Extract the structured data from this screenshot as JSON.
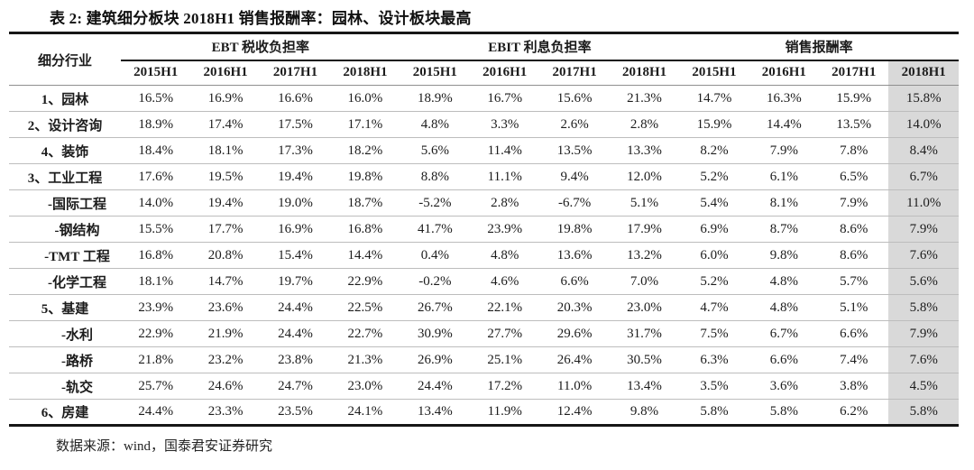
{
  "colors": {
    "highlight_bg": "#d9d9d9",
    "heavy_rule": "#161616",
    "row_divider": "#bdbdbd"
  },
  "chart_data": {
    "type": "table",
    "title": "表 2: 建筑细分板块 2018H1 销售报酬率：园林、设计板块最高",
    "row_header": "细分行业",
    "column_groups": [
      "EBT 税收负担率",
      "EBIT 利息负担率",
      "销售报酬率"
    ],
    "sub_columns": [
      "2015H1",
      "2016H1",
      "2017H1",
      "2018H1"
    ],
    "unit": "%",
    "highlighted_column": "销售报酬率 2018H1",
    "rows": [
      {
        "label": "1、园林",
        "indent": false,
        "ebt": [
          16.5,
          16.9,
          16.6,
          16.0
        ],
        "ebit": [
          18.9,
          16.7,
          15.6,
          21.3
        ],
        "sales": [
          14.7,
          16.3,
          15.9,
          15.8
        ]
      },
      {
        "label": "2、设计咨询",
        "indent": false,
        "ebt": [
          18.9,
          17.4,
          17.5,
          17.1
        ],
        "ebit": [
          4.8,
          3.3,
          2.6,
          2.8
        ],
        "sales": [
          15.9,
          14.4,
          13.5,
          14.0
        ]
      },
      {
        "label": "4、装饰",
        "indent": false,
        "ebt": [
          18.4,
          18.1,
          17.3,
          18.2
        ],
        "ebit": [
          5.6,
          11.4,
          13.5,
          13.3
        ],
        "sales": [
          8.2,
          7.9,
          7.8,
          8.4
        ]
      },
      {
        "label": "3、工业工程",
        "indent": false,
        "ebt": [
          17.6,
          19.5,
          19.4,
          19.8
        ],
        "ebit": [
          8.8,
          11.1,
          9.4,
          12.0
        ],
        "sales": [
          5.2,
          6.1,
          6.5,
          6.7
        ]
      },
      {
        "label": "-国际工程",
        "indent": true,
        "ebt": [
          14.0,
          19.4,
          19.0,
          18.7
        ],
        "ebit": [
          -5.2,
          2.8,
          -6.7,
          5.1
        ],
        "sales": [
          5.4,
          8.1,
          7.9,
          11.0
        ]
      },
      {
        "label": "-钢结构",
        "indent": true,
        "ebt": [
          15.5,
          17.7,
          16.9,
          16.8
        ],
        "ebit": [
          41.7,
          23.9,
          19.8,
          17.9
        ],
        "sales": [
          6.9,
          8.7,
          8.6,
          7.9
        ]
      },
      {
        "label": "-TMT 工程",
        "indent": true,
        "ebt": [
          16.8,
          20.8,
          15.4,
          14.4
        ],
        "ebit": [
          0.4,
          4.8,
          13.6,
          13.2
        ],
        "sales": [
          6.0,
          9.8,
          8.6,
          7.6
        ]
      },
      {
        "label": "-化学工程",
        "indent": true,
        "ebt": [
          18.1,
          14.7,
          19.7,
          22.9
        ],
        "ebit": [
          -0.2,
          4.6,
          6.6,
          7.0
        ],
        "sales": [
          5.2,
          4.8,
          5.7,
          5.6
        ]
      },
      {
        "label": "5、基建",
        "indent": false,
        "ebt": [
          23.9,
          23.6,
          24.4,
          22.5
        ],
        "ebit": [
          26.7,
          22.1,
          20.3,
          23.0
        ],
        "sales": [
          4.7,
          4.8,
          5.1,
          5.8
        ]
      },
      {
        "label": "-水利",
        "indent": true,
        "ebt": [
          22.9,
          21.9,
          24.4,
          22.7
        ],
        "ebit": [
          30.9,
          27.7,
          29.6,
          31.7
        ],
        "sales": [
          7.5,
          6.7,
          6.6,
          7.9
        ]
      },
      {
        "label": "-路桥",
        "indent": true,
        "ebt": [
          21.8,
          23.2,
          23.8,
          21.3
        ],
        "ebit": [
          26.9,
          25.1,
          26.4,
          30.5
        ],
        "sales": [
          6.3,
          6.6,
          7.4,
          7.6
        ]
      },
      {
        "label": "-轨交",
        "indent": true,
        "ebt": [
          25.7,
          24.6,
          24.7,
          23.0
        ],
        "ebit": [
          24.4,
          17.2,
          11.0,
          13.4
        ],
        "sales": [
          3.5,
          3.6,
          3.8,
          4.5
        ]
      },
      {
        "label": "6、房建",
        "indent": false,
        "ebt": [
          24.4,
          23.3,
          23.5,
          24.1
        ],
        "ebit": [
          13.4,
          11.9,
          12.4,
          9.8
        ],
        "sales": [
          5.8,
          5.8,
          6.2,
          5.8
        ]
      }
    ],
    "source": "数据来源：wind，国泰君安证券研究"
  }
}
